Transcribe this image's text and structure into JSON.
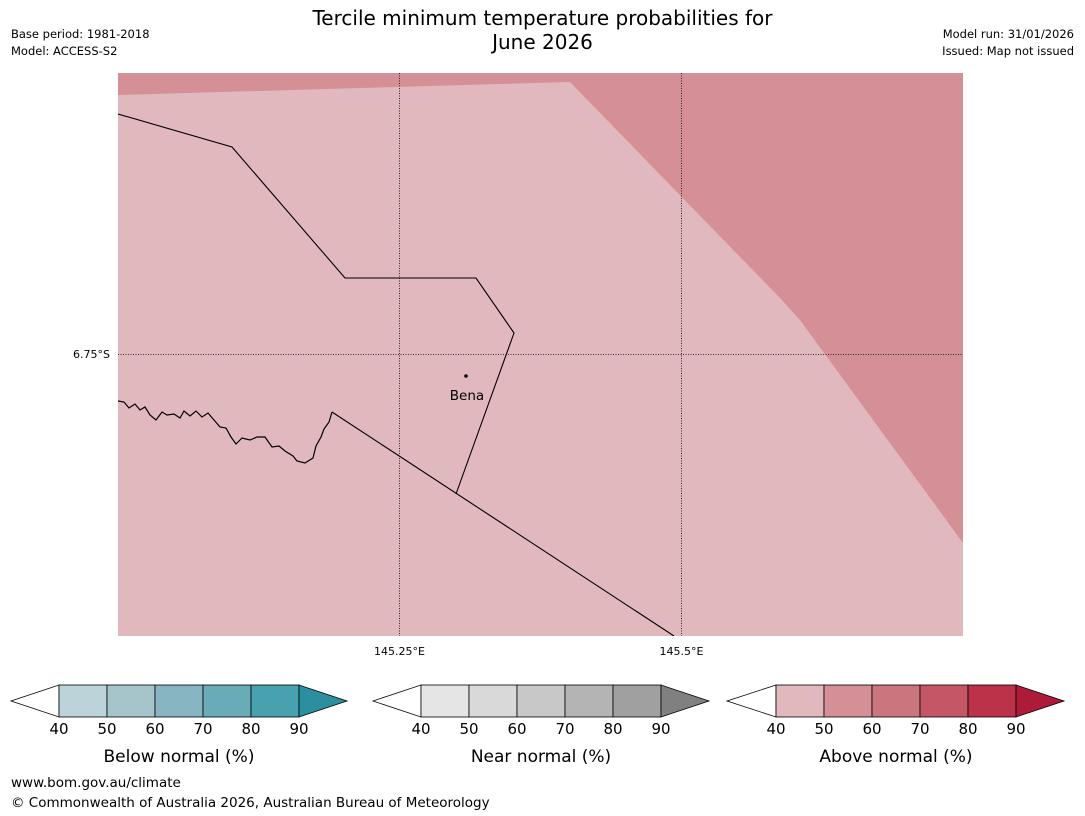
{
  "title": {
    "line1": "Tercile minimum temperature probabilities for",
    "line2": "June 2026"
  },
  "meta_left": {
    "base_period": "Base period: 1981-2018",
    "model": "Model: ACCESS-S2"
  },
  "meta_right": {
    "model_run": "Model run: 31/01/2026",
    "issued": "Issued: Map not issued"
  },
  "map": {
    "lat_label": "6.75°S",
    "lon_labels": [
      "145.25°E",
      "145.5°E"
    ],
    "place": "Bena",
    "region_categories": [
      "Above normal 40-50%",
      "Above normal 50-60%"
    ]
  },
  "legends": [
    {
      "label": "Below normal (%)",
      "ticks": [
        "40",
        "50",
        "60",
        "70",
        "80",
        "90"
      ],
      "colors": [
        "#ffffff",
        "#bdd3da",
        "#a5c5cb",
        "#87b5c1",
        "#6aabb8",
        "#47a1ae",
        "#2b8fa0"
      ]
    },
    {
      "label": "Near normal (%)",
      "ticks": [
        "40",
        "50",
        "60",
        "70",
        "80",
        "90"
      ],
      "colors": [
        "#ffffff",
        "#e5e5e5",
        "#d9d9d9",
        "#c8c8c8",
        "#b4b4b4",
        "#a0a0a0",
        "#808080"
      ]
    },
    {
      "label": "Above normal (%)",
      "ticks": [
        "40",
        "50",
        "60",
        "70",
        "80",
        "90"
      ],
      "colors": [
        "#ffffff",
        "#e1b8bd",
        "#d58f97",
        "#cb767e",
        "#c55665",
        "#bb3249",
        "#ad1a3a"
      ]
    }
  ],
  "footer": {
    "url": "www.bom.gov.au/climate",
    "copyright": "© Commonwealth of Australia 2026, Australian Bureau of Meteorology"
  }
}
